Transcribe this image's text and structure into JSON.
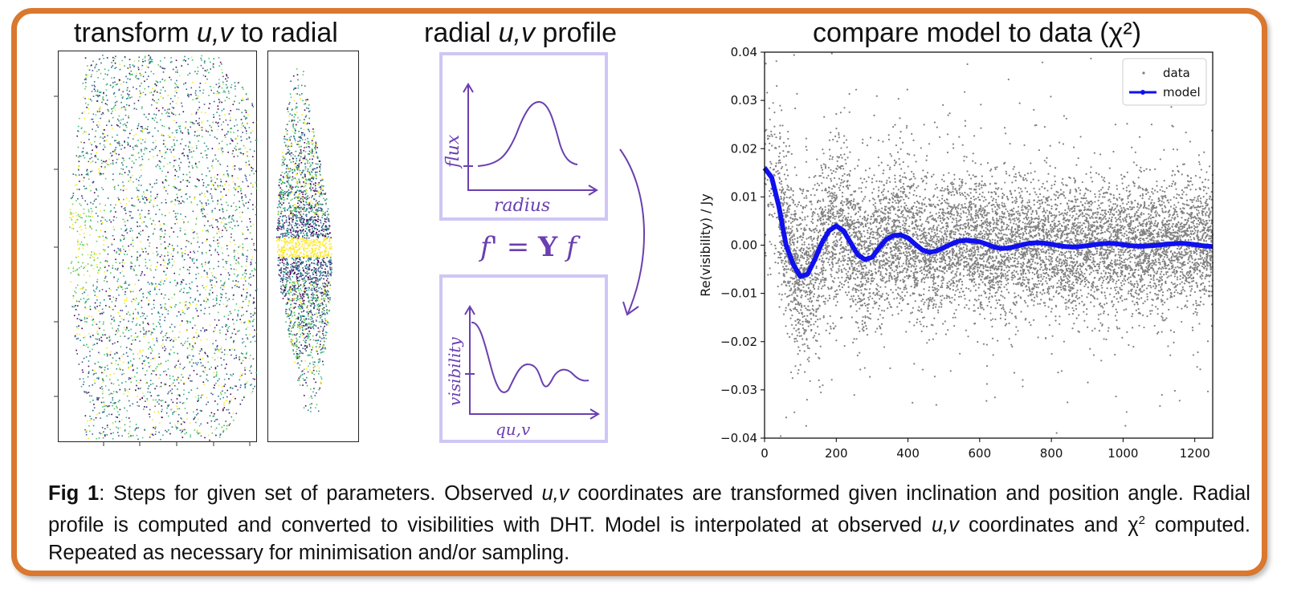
{
  "titles": {
    "panel1_a": "transform ",
    "panel1_em": "u,v",
    "panel1_b": " to radial",
    "panel2_a": "radial ",
    "panel2_em": "u,v",
    "panel2_b": " profile",
    "panel3": "compare model to data (χ²)"
  },
  "sketch": {
    "top_ylabel": "flux",
    "top_xlabel": "radius",
    "equation_f": "f",
    "equation_prime": "' = ",
    "equation_Y": "Y",
    "equation_f2": " f",
    "bottom_ylabel": "visibility",
    "bottom_xlabel": "qu,v"
  },
  "caption": {
    "lead": "Fig 1",
    "p1": ": Steps for given set of parameters. Observed ",
    "uv1": "u,v",
    "p2": " coordinates are transformed given inclination and position angle. Radial profile is computed and converted to visibilities with DHT. Model is interpolated at observed ",
    "uv2": "u,v",
    "p3": " coordinates and χ",
    "sup": "2",
    "p4": " computed. Repeated as necessary for minimisation and/or sampling."
  },
  "chart_data": {
    "type": "scatter",
    "title": "",
    "xlabel": "",
    "ylabel": "Re(visibility) / Jy",
    "xlim": [
      0,
      1250
    ],
    "ylim": [
      -0.04,
      0.04
    ],
    "xticks": [
      "0",
      "200",
      "400",
      "600",
      "800",
      "1000",
      "1200"
    ],
    "yticks": [
      "0.04",
      "0.03",
      "0.02",
      "0.01",
      "0.00",
      "−0.01",
      "−0.02",
      "−0.03",
      "−0.04"
    ],
    "legend": {
      "placement": "top-right",
      "entries": [
        "data",
        "model"
      ]
    },
    "colors": {
      "data": "#808080",
      "model": "#1010ee"
    },
    "series": [
      {
        "name": "model",
        "x": [
          0,
          20,
          40,
          60,
          80,
          100,
          120,
          140,
          160,
          180,
          200,
          220,
          240,
          260,
          280,
          300,
          320,
          340,
          360,
          380,
          400,
          420,
          440,
          460,
          480,
          500,
          520,
          540,
          560,
          580,
          600,
          620,
          640,
          660,
          680,
          700,
          720,
          740,
          760,
          780,
          800,
          820,
          840,
          860,
          880,
          900,
          920,
          940,
          960,
          980,
          1000,
          1020,
          1040,
          1060,
          1080,
          1100,
          1120,
          1140,
          1160,
          1180,
          1200,
          1220,
          1250
        ],
        "y": [
          0.016,
          0.014,
          0.008,
          0.0,
          -0.004,
          -0.0065,
          -0.006,
          -0.003,
          0.0005,
          0.003,
          0.004,
          0.003,
          0.0005,
          -0.002,
          -0.003,
          -0.0025,
          -0.0005,
          0.0012,
          0.002,
          0.0021,
          0.0015,
          0.0002,
          -0.001,
          -0.0015,
          -0.0012,
          -0.0005,
          0.0002,
          0.0008,
          0.001,
          0.0009,
          0.0007,
          0.0002,
          -0.0004,
          -0.0007,
          -0.0006,
          -0.0003,
          0.0001,
          0.0004,
          0.0005,
          0.0004,
          0.0002,
          -0.0001,
          -0.0003,
          -0.0004,
          -0.0003,
          -0.0001,
          0.0001,
          0.0003,
          0.0004,
          0.0003,
          0.0001,
          -0.0001,
          -0.0002,
          -0.0002,
          -0.0001,
          0.0,
          0.0002,
          0.0003,
          0.0004,
          0.0003,
          0.0001,
          -0.0001,
          -0.0003
        ]
      },
      {
        "name": "data",
        "description_points": "noisy scatter around model; spread ~±0.01 Jy, wider at low x"
      }
    ]
  }
}
